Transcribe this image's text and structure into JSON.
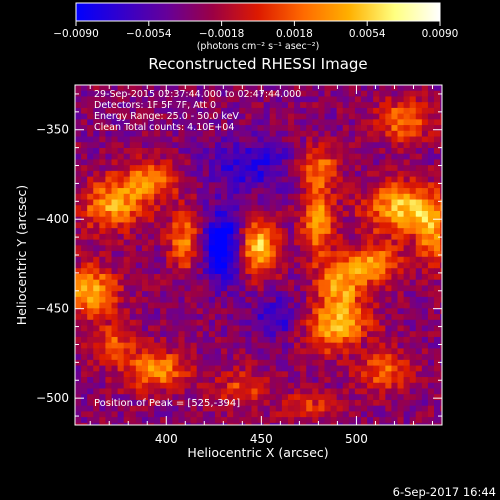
{
  "colorbar": {
    "ticks": [
      "−0.0090",
      "−0.0054",
      "−0.0018",
      "0.0018",
      "0.0054",
      "0.0090"
    ],
    "tick_values": [
      -0.009,
      -0.0054,
      -0.0018,
      0.0018,
      0.0054,
      0.009
    ],
    "unit_label": "(photons cm⁻² s⁻¹ asec⁻²)",
    "range": [
      -0.009,
      0.009
    ],
    "palette": [
      "#0000ff",
      "#3300cc",
      "#660099",
      "#9b0045",
      "#dd1a00",
      "#ff6a00",
      "#ffb000",
      "#ffff80",
      "#ffffff"
    ]
  },
  "chart_data": {
    "type": "heatmap",
    "title": "Reconstructed RHESSI Image",
    "xlabel": "Heliocentric X (arcsec)",
    "ylabel": "Heliocentric Y (arcsec)",
    "xlim": [
      352,
      545
    ],
    "ylim": [
      -515,
      -325
    ],
    "xticks": [
      400,
      450,
      500
    ],
    "yticks": [
      -350,
      -400,
      -450,
      -500
    ],
    "xtick_labels": [
      "400",
      "450",
      "500"
    ],
    "ytick_labels": [
      "−350",
      "−400",
      "−450",
      "−500"
    ],
    "annotations": [
      "29-Sep-2015 02:37:44.000 to 02:47:44.000",
      "Detectors: 1F 5F 7F, Att 0",
      "Energy Range: 25.0 - 50.0 keV",
      "Clean   Total counts: 4.10E+04"
    ],
    "peak_label": "Position of Peak = [525,-394]",
    "peak": [
      525,
      -394
    ],
    "sources": [
      {
        "x": 448,
        "y": -416,
        "amp": 0.009,
        "sx": 7,
        "sy": 11
      },
      {
        "x": 525,
        "y": -394,
        "amp": 0.0085,
        "sx": 14,
        "sy": 10
      },
      {
        "x": 372,
        "y": -392,
        "amp": 0.007,
        "sx": 12,
        "sy": 10
      },
      {
        "x": 392,
        "y": -378,
        "amp": 0.006,
        "sx": 10,
        "sy": 8
      },
      {
        "x": 410,
        "y": -412,
        "amp": 0.006,
        "sx": 6,
        "sy": 12
      },
      {
        "x": 480,
        "y": -400,
        "amp": 0.0065,
        "sx": 6,
        "sy": 16
      },
      {
        "x": 480,
        "y": -370,
        "amp": 0.005,
        "sx": 8,
        "sy": 8
      },
      {
        "x": 492,
        "y": -435,
        "amp": 0.007,
        "sx": 8,
        "sy": 10
      },
      {
        "x": 490,
        "y": -460,
        "amp": 0.008,
        "sx": 12,
        "sy": 10
      },
      {
        "x": 510,
        "y": -425,
        "amp": 0.0065,
        "sx": 9,
        "sy": 8
      },
      {
        "x": 360,
        "y": -440,
        "amp": 0.0075,
        "sx": 10,
        "sy": 10
      },
      {
        "x": 372,
        "y": -470,
        "amp": 0.0045,
        "sx": 8,
        "sy": 8
      },
      {
        "x": 395,
        "y": -484,
        "amp": 0.0065,
        "sx": 12,
        "sy": 8
      },
      {
        "x": 525,
        "y": -345,
        "amp": 0.006,
        "sx": 10,
        "sy": 8
      },
      {
        "x": 540,
        "y": -410,
        "amp": 0.0055,
        "sx": 6,
        "sy": 12
      },
      {
        "x": 515,
        "y": -485,
        "amp": 0.005,
        "sx": 10,
        "sy": 8
      },
      {
        "x": 440,
        "y": -495,
        "amp": 0.004,
        "sx": 10,
        "sy": 8
      },
      {
        "x": 475,
        "y": -505,
        "amp": 0.0035,
        "sx": 10,
        "sy": 6
      },
      {
        "x": 430,
        "y": -415,
        "amp": -0.007,
        "sx": 8,
        "sy": 14
      },
      {
        "x": 458,
        "y": -455,
        "amp": -0.004,
        "sx": 10,
        "sy": 8
      },
      {
        "x": 445,
        "y": -370,
        "amp": -0.004,
        "sx": 16,
        "sy": 10
      },
      {
        "x": 500,
        "y": -470,
        "amp": -0.002,
        "sx": 6,
        "sy": 6
      }
    ]
  },
  "footer": {
    "timestamp": "6-Sep-2017 16:44"
  }
}
